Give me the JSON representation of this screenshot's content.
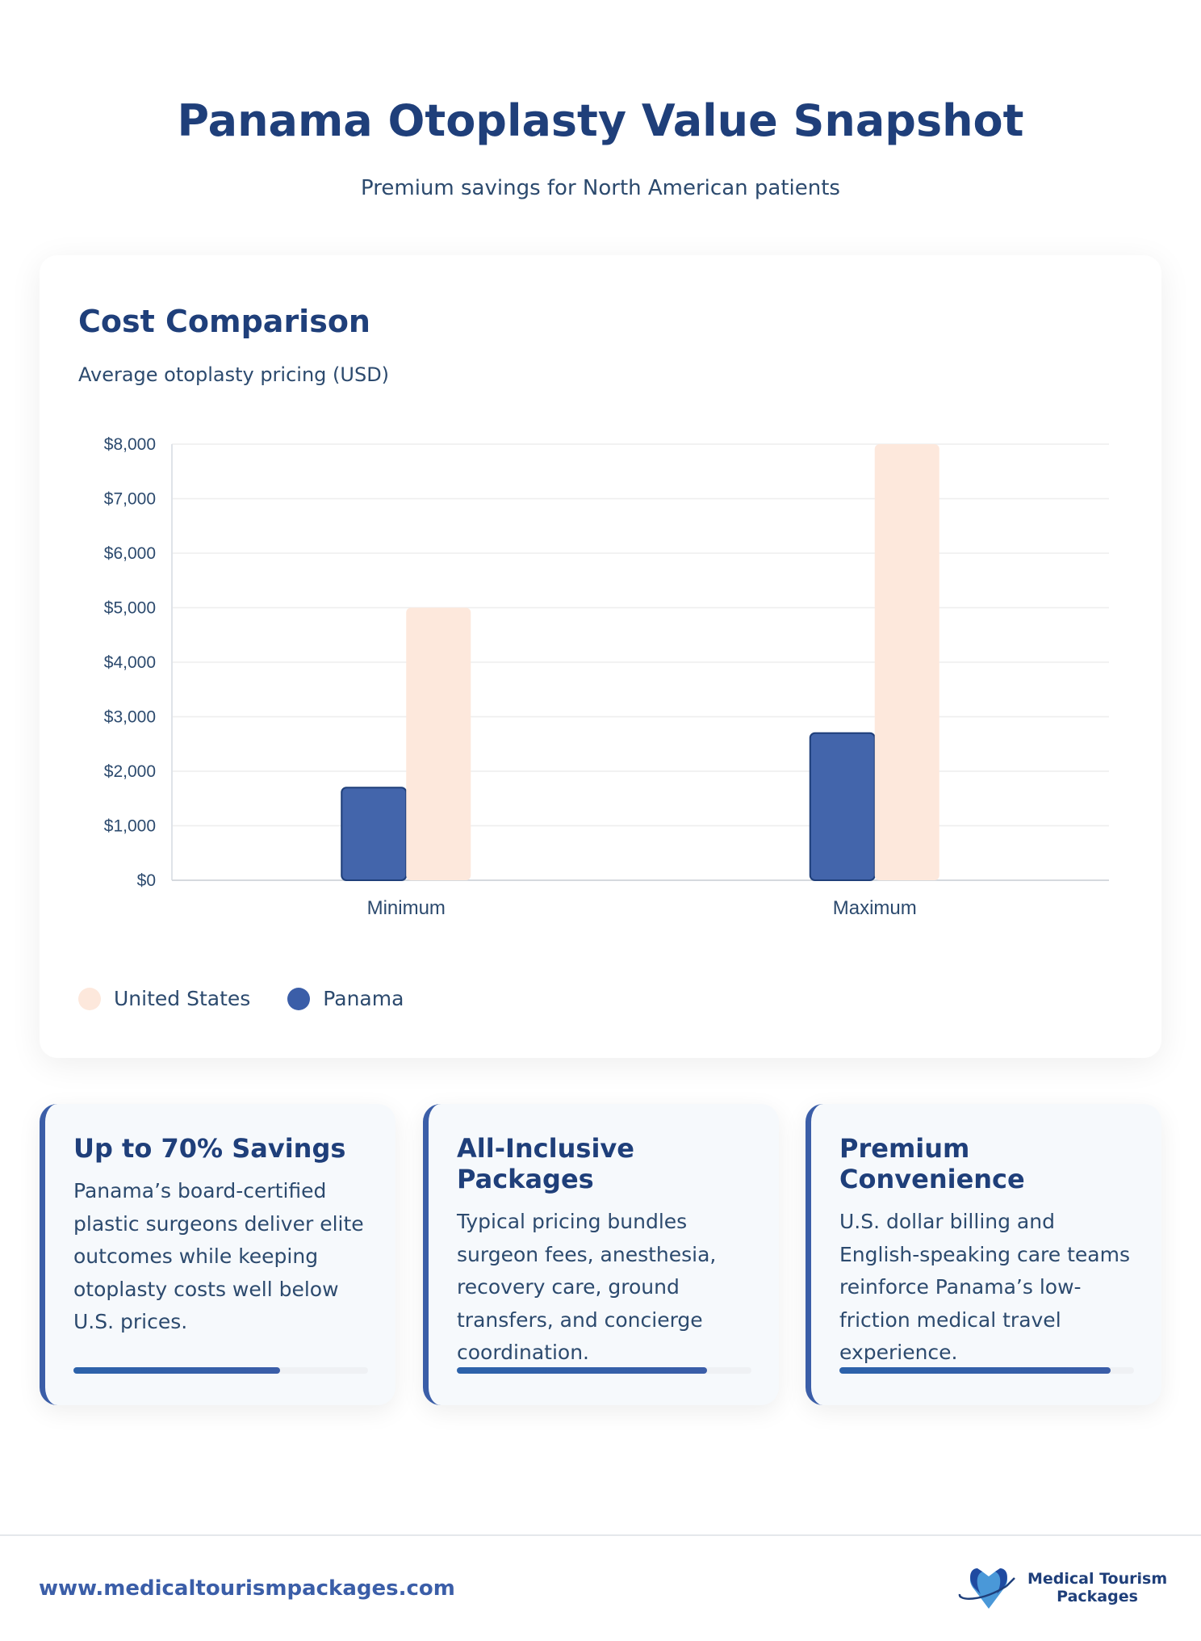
{
  "header": {
    "title": "Panama Otoplasty Value Snapshot",
    "subtitle": "Premium savings for North American patients"
  },
  "chart_card": {
    "title": "Cost Comparison",
    "subtitle": "Average otoplasty pricing (USD)"
  },
  "chart_data": {
    "type": "bar",
    "categories": [
      "Minimum",
      "Maximum"
    ],
    "series": [
      {
        "name": "Panama",
        "values": [
          1700,
          2700
        ],
        "color": "#4365ab"
      },
      {
        "name": "United States",
        "values": [
          5000,
          8000
        ],
        "color": "#fde8dc"
      }
    ],
    "ylim": [
      0,
      8000
    ],
    "yticks": [
      "$0",
      "$1,000",
      "$2,000",
      "$3,000",
      "$4,000",
      "$5,000",
      "$6,000",
      "$7,000",
      "$8,000"
    ],
    "grid": true,
    "legend": "bottom-left"
  },
  "legend": [
    {
      "label": "United States",
      "color": "#fde8dc"
    },
    {
      "label": "Panama",
      "color": "#3b5ea8"
    }
  ],
  "features": [
    {
      "title": "Up to 70% Savings",
      "text": "Panama’s board-certified plastic surgeons deliver elite outcomes while keeping otoplasty costs well below U.S. prices.",
      "progress": 70
    },
    {
      "title": "All-Inclusive Packages",
      "text": "Typical pricing bundles surgeon fees, anesthesia, recovery care, ground transfers, and concierge coordination.",
      "progress": 85
    },
    {
      "title": "Premium Convenience",
      "text": "U.S. dollar billing and English-speaking care teams reinforce Panama’s low-friction medical travel experience.",
      "progress": 92
    }
  ],
  "footer": {
    "url": "www.medicaltourismpackages.com",
    "logo_line1": "Medical Tourism",
    "logo_line2": "Packages"
  }
}
